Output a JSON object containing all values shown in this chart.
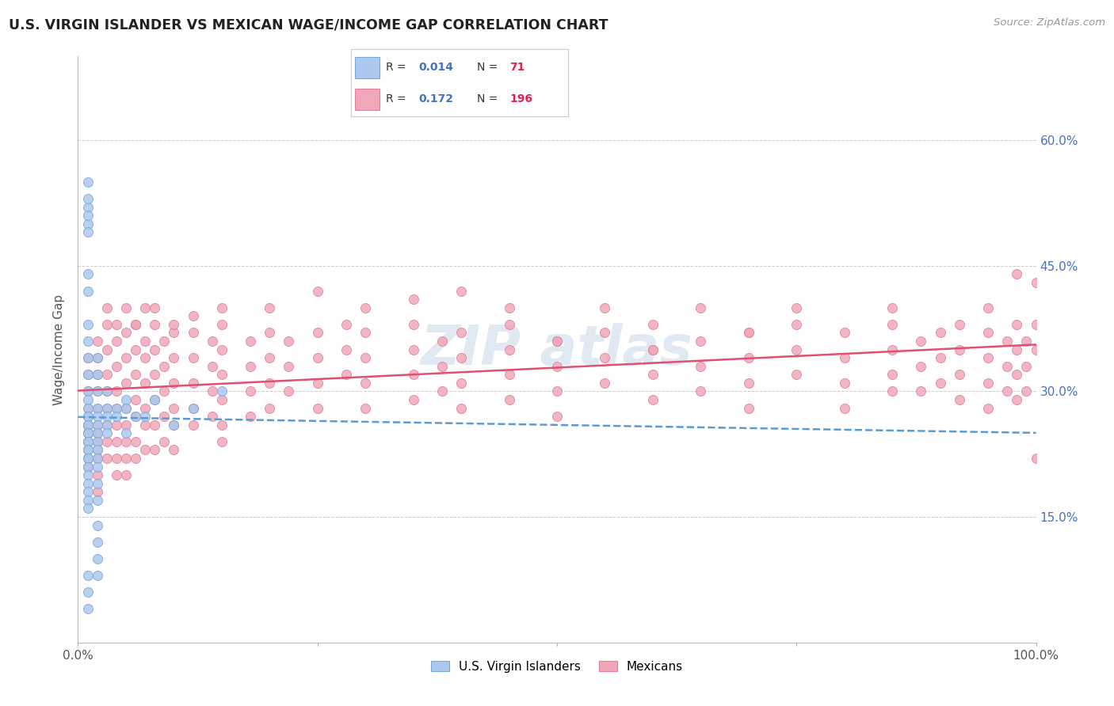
{
  "title": "U.S. VIRGIN ISLANDER VS MEXICAN WAGE/INCOME GAP CORRELATION CHART",
  "source": "Source: ZipAtlas.com",
  "ylabel": "Wage/Income Gap",
  "xlim": [
    0.0,
    1.0
  ],
  "ylim": [
    0.0,
    0.7
  ],
  "background_color": "#ffffff",
  "grid_color": "#cccccc",
  "vi_line_color": "#5b9bd5",
  "mx_line_color": "#e05070",
  "vi_dot_color": "#adc8ee",
  "mx_dot_color": "#f0a8b8",
  "vi_dot_edge": "#7aaad4",
  "mx_dot_edge": "#e080a0",
  "legend_R_color": "#4472c4",
  "legend_N_color": "#e0224e",
  "vi_points": [
    [
      0.01,
      0.52
    ],
    [
      0.01,
      0.5
    ],
    [
      0.01,
      0.38
    ],
    [
      0.01,
      0.36
    ],
    [
      0.01,
      0.34
    ],
    [
      0.01,
      0.32
    ],
    [
      0.01,
      0.3
    ],
    [
      0.01,
      0.29
    ],
    [
      0.01,
      0.28
    ],
    [
      0.01,
      0.27
    ],
    [
      0.01,
      0.27
    ],
    [
      0.01,
      0.26
    ],
    [
      0.01,
      0.26
    ],
    [
      0.01,
      0.26
    ],
    [
      0.01,
      0.25
    ],
    [
      0.01,
      0.25
    ],
    [
      0.01,
      0.25
    ],
    [
      0.01,
      0.24
    ],
    [
      0.01,
      0.24
    ],
    [
      0.01,
      0.23
    ],
    [
      0.01,
      0.23
    ],
    [
      0.01,
      0.22
    ],
    [
      0.01,
      0.22
    ],
    [
      0.01,
      0.21
    ],
    [
      0.01,
      0.2
    ],
    [
      0.01,
      0.19
    ],
    [
      0.01,
      0.18
    ],
    [
      0.01,
      0.17
    ],
    [
      0.01,
      0.16
    ],
    [
      0.02,
      0.34
    ],
    [
      0.02,
      0.32
    ],
    [
      0.02,
      0.3
    ],
    [
      0.02,
      0.28
    ],
    [
      0.02,
      0.27
    ],
    [
      0.02,
      0.26
    ],
    [
      0.02,
      0.25
    ],
    [
      0.02,
      0.24
    ],
    [
      0.02,
      0.23
    ],
    [
      0.02,
      0.22
    ],
    [
      0.02,
      0.21
    ],
    [
      0.02,
      0.19
    ],
    [
      0.02,
      0.17
    ],
    [
      0.02,
      0.14
    ],
    [
      0.02,
      0.12
    ],
    [
      0.03,
      0.3
    ],
    [
      0.03,
      0.28
    ],
    [
      0.03,
      0.27
    ],
    [
      0.03,
      0.26
    ],
    [
      0.03,
      0.25
    ],
    [
      0.04,
      0.28
    ],
    [
      0.04,
      0.27
    ],
    [
      0.05,
      0.29
    ],
    [
      0.05,
      0.28
    ],
    [
      0.05,
      0.25
    ],
    [
      0.06,
      0.27
    ],
    [
      0.07,
      0.27
    ],
    [
      0.08,
      0.29
    ],
    [
      0.1,
      0.26
    ],
    [
      0.12,
      0.28
    ],
    [
      0.15,
      0.3
    ],
    [
      0.01,
      0.55
    ],
    [
      0.01,
      0.53
    ],
    [
      0.01,
      0.08
    ],
    [
      0.01,
      0.06
    ],
    [
      0.01,
      0.04
    ],
    [
      0.01,
      0.51
    ],
    [
      0.01,
      0.49
    ],
    [
      0.02,
      0.1
    ],
    [
      0.02,
      0.08
    ],
    [
      0.01,
      0.44
    ],
    [
      0.01,
      0.42
    ]
  ],
  "mx_points": [
    [
      0.01,
      0.34
    ],
    [
      0.01,
      0.32
    ],
    [
      0.01,
      0.3
    ],
    [
      0.01,
      0.28
    ],
    [
      0.01,
      0.26
    ],
    [
      0.01,
      0.25
    ],
    [
      0.01,
      0.24
    ],
    [
      0.01,
      0.23
    ],
    [
      0.01,
      0.22
    ],
    [
      0.01,
      0.21
    ],
    [
      0.02,
      0.36
    ],
    [
      0.02,
      0.34
    ],
    [
      0.02,
      0.32
    ],
    [
      0.02,
      0.3
    ],
    [
      0.02,
      0.28
    ],
    [
      0.02,
      0.26
    ],
    [
      0.02,
      0.25
    ],
    [
      0.02,
      0.24
    ],
    [
      0.02,
      0.23
    ],
    [
      0.02,
      0.22
    ],
    [
      0.02,
      0.2
    ],
    [
      0.02,
      0.18
    ],
    [
      0.03,
      0.38
    ],
    [
      0.03,
      0.35
    ],
    [
      0.03,
      0.32
    ],
    [
      0.03,
      0.3
    ],
    [
      0.03,
      0.28
    ],
    [
      0.03,
      0.26
    ],
    [
      0.03,
      0.24
    ],
    [
      0.03,
      0.22
    ],
    [
      0.04,
      0.36
    ],
    [
      0.04,
      0.33
    ],
    [
      0.04,
      0.3
    ],
    [
      0.04,
      0.28
    ],
    [
      0.04,
      0.26
    ],
    [
      0.04,
      0.24
    ],
    [
      0.04,
      0.22
    ],
    [
      0.04,
      0.2
    ],
    [
      0.05,
      0.37
    ],
    [
      0.05,
      0.34
    ],
    [
      0.05,
      0.31
    ],
    [
      0.05,
      0.28
    ],
    [
      0.05,
      0.26
    ],
    [
      0.05,
      0.24
    ],
    [
      0.05,
      0.22
    ],
    [
      0.05,
      0.2
    ],
    [
      0.06,
      0.38
    ],
    [
      0.06,
      0.35
    ],
    [
      0.06,
      0.32
    ],
    [
      0.06,
      0.29
    ],
    [
      0.06,
      0.27
    ],
    [
      0.06,
      0.24
    ],
    [
      0.06,
      0.22
    ],
    [
      0.07,
      0.36
    ],
    [
      0.07,
      0.34
    ],
    [
      0.07,
      0.31
    ],
    [
      0.07,
      0.28
    ],
    [
      0.07,
      0.26
    ],
    [
      0.07,
      0.23
    ],
    [
      0.08,
      0.38
    ],
    [
      0.08,
      0.35
    ],
    [
      0.08,
      0.32
    ],
    [
      0.08,
      0.29
    ],
    [
      0.08,
      0.26
    ],
    [
      0.08,
      0.23
    ],
    [
      0.09,
      0.36
    ],
    [
      0.09,
      0.33
    ],
    [
      0.09,
      0.3
    ],
    [
      0.09,
      0.27
    ],
    [
      0.09,
      0.24
    ],
    [
      0.1,
      0.37
    ],
    [
      0.1,
      0.34
    ],
    [
      0.1,
      0.31
    ],
    [
      0.1,
      0.28
    ],
    [
      0.1,
      0.26
    ],
    [
      0.1,
      0.23
    ],
    [
      0.12,
      0.37
    ],
    [
      0.12,
      0.34
    ],
    [
      0.12,
      0.31
    ],
    [
      0.12,
      0.28
    ],
    [
      0.12,
      0.26
    ],
    [
      0.14,
      0.36
    ],
    [
      0.14,
      0.33
    ],
    [
      0.14,
      0.3
    ],
    [
      0.14,
      0.27
    ],
    [
      0.15,
      0.38
    ],
    [
      0.15,
      0.35
    ],
    [
      0.15,
      0.32
    ],
    [
      0.15,
      0.29
    ],
    [
      0.15,
      0.26
    ],
    [
      0.15,
      0.24
    ],
    [
      0.18,
      0.36
    ],
    [
      0.18,
      0.33
    ],
    [
      0.18,
      0.3
    ],
    [
      0.18,
      0.27
    ],
    [
      0.2,
      0.37
    ],
    [
      0.2,
      0.34
    ],
    [
      0.2,
      0.31
    ],
    [
      0.2,
      0.28
    ],
    [
      0.22,
      0.36
    ],
    [
      0.22,
      0.33
    ],
    [
      0.22,
      0.3
    ],
    [
      0.25,
      0.37
    ],
    [
      0.25,
      0.34
    ],
    [
      0.25,
      0.31
    ],
    [
      0.25,
      0.28
    ],
    [
      0.28,
      0.38
    ],
    [
      0.28,
      0.35
    ],
    [
      0.28,
      0.32
    ],
    [
      0.3,
      0.37
    ],
    [
      0.3,
      0.34
    ],
    [
      0.3,
      0.31
    ],
    [
      0.3,
      0.28
    ],
    [
      0.35,
      0.38
    ],
    [
      0.35,
      0.35
    ],
    [
      0.35,
      0.32
    ],
    [
      0.35,
      0.29
    ],
    [
      0.38,
      0.36
    ],
    [
      0.38,
      0.33
    ],
    [
      0.38,
      0.3
    ],
    [
      0.4,
      0.37
    ],
    [
      0.4,
      0.34
    ],
    [
      0.4,
      0.31
    ],
    [
      0.4,
      0.28
    ],
    [
      0.45,
      0.38
    ],
    [
      0.45,
      0.35
    ],
    [
      0.45,
      0.32
    ],
    [
      0.45,
      0.29
    ],
    [
      0.5,
      0.36
    ],
    [
      0.5,
      0.33
    ],
    [
      0.5,
      0.3
    ],
    [
      0.5,
      0.27
    ],
    [
      0.55,
      0.37
    ],
    [
      0.55,
      0.34
    ],
    [
      0.55,
      0.31
    ],
    [
      0.6,
      0.38
    ],
    [
      0.6,
      0.35
    ],
    [
      0.6,
      0.32
    ],
    [
      0.6,
      0.29
    ],
    [
      0.65,
      0.36
    ],
    [
      0.65,
      0.33
    ],
    [
      0.65,
      0.3
    ],
    [
      0.7,
      0.37
    ],
    [
      0.7,
      0.34
    ],
    [
      0.7,
      0.31
    ],
    [
      0.7,
      0.28
    ],
    [
      0.75,
      0.38
    ],
    [
      0.75,
      0.35
    ],
    [
      0.75,
      0.32
    ],
    [
      0.8,
      0.37
    ],
    [
      0.8,
      0.34
    ],
    [
      0.8,
      0.31
    ],
    [
      0.8,
      0.28
    ],
    [
      0.85,
      0.38
    ],
    [
      0.85,
      0.35
    ],
    [
      0.85,
      0.32
    ],
    [
      0.85,
      0.3
    ],
    [
      0.88,
      0.36
    ],
    [
      0.88,
      0.33
    ],
    [
      0.88,
      0.3
    ],
    [
      0.9,
      0.37
    ],
    [
      0.9,
      0.34
    ],
    [
      0.9,
      0.31
    ],
    [
      0.92,
      0.38
    ],
    [
      0.92,
      0.35
    ],
    [
      0.92,
      0.32
    ],
    [
      0.92,
      0.29
    ],
    [
      0.95,
      0.37
    ],
    [
      0.95,
      0.34
    ],
    [
      0.95,
      0.31
    ],
    [
      0.95,
      0.28
    ],
    [
      0.97,
      0.36
    ],
    [
      0.97,
      0.33
    ],
    [
      0.97,
      0.3
    ],
    [
      0.98,
      0.38
    ],
    [
      0.98,
      0.35
    ],
    [
      0.98,
      0.32
    ],
    [
      0.98,
      0.29
    ],
    [
      0.99,
      0.36
    ],
    [
      0.99,
      0.33
    ],
    [
      0.99,
      0.3
    ],
    [
      1.0,
      0.43
    ],
    [
      1.0,
      0.38
    ],
    [
      1.0,
      0.35
    ],
    [
      1.0,
      0.22
    ],
    [
      0.5,
      0.36
    ],
    [
      0.6,
      0.35
    ],
    [
      0.7,
      0.37
    ],
    [
      0.03,
      0.4
    ],
    [
      0.04,
      0.38
    ],
    [
      0.05,
      0.4
    ],
    [
      0.06,
      0.38
    ],
    [
      0.07,
      0.4
    ],
    [
      0.08,
      0.4
    ],
    [
      0.1,
      0.38
    ],
    [
      0.12,
      0.39
    ],
    [
      0.15,
      0.4
    ],
    [
      0.2,
      0.4
    ],
    [
      0.25,
      0.42
    ],
    [
      0.3,
      0.4
    ],
    [
      0.35,
      0.41
    ],
    [
      0.4,
      0.42
    ],
    [
      0.45,
      0.4
    ],
    [
      0.55,
      0.4
    ],
    [
      0.65,
      0.4
    ],
    [
      0.75,
      0.4
    ],
    [
      0.85,
      0.4
    ],
    [
      0.95,
      0.4
    ],
    [
      0.98,
      0.44
    ]
  ]
}
